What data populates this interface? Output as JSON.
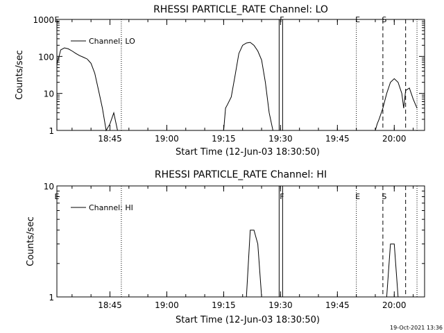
{
  "colors": {
    "background": "#ffffff",
    "foreground": "#000000"
  },
  "timestamp": "19-Oct-2021 13:36",
  "chart_data": [
    {
      "type": "line",
      "title": "RHESSI PARTICLE_RATE Channel: LO",
      "xlabel": "Start Time (12-Jun-03 18:30:50)",
      "ylabel": "Counts/sec",
      "y_scale": "log",
      "xlim": [
        "18:31",
        "20:08"
      ],
      "ylim": [
        1,
        1000
      ],
      "x_ticks": [
        "18:45",
        "19:00",
        "19:15",
        "19:30",
        "19:45",
        "20:00"
      ],
      "y_ticks": [
        "1",
        "10",
        "100",
        "1000"
      ],
      "legend": "top-left",
      "grid": false,
      "series": [
        {
          "name": "Channel: LO",
          "x": [
            "18:31",
            "18:32",
            "18:33",
            "18:34",
            "18:35",
            "18:36",
            "18:37",
            "18:38",
            "18:39",
            "18:40",
            "18:41",
            "18:42",
            "18:43",
            "18:44",
            "18:45",
            "18:46",
            "18:47",
            "19:15",
            "19:15.5",
            "19:16",
            "19:17",
            "19:18",
            "19:19",
            "19:20",
            "19:21",
            "19:22",
            "19:23",
            "19:24",
            "19:25",
            "19:26",
            "19:27",
            "19:28",
            "19:29",
            "19:55",
            "19:55.5",
            "19:56",
            "19:57",
            "19:58",
            "19:59",
            "20:00",
            "20:01",
            "20:02",
            "20:02.5",
            "20:03",
            "20:04",
            "20:05",
            "20:06"
          ],
          "values": [
            60,
            150,
            170,
            160,
            140,
            120,
            105,
            95,
            85,
            65,
            35,
            12,
            4,
            1,
            1.5,
            3,
            1,
            1,
            4,
            5,
            8,
            30,
            120,
            200,
            230,
            240,
            200,
            140,
            80,
            20,
            3,
            1,
            1,
            1,
            1.5,
            2,
            4,
            10,
            20,
            25,
            20,
            10,
            4,
            12,
            14,
            7,
            4
          ]
        }
      ],
      "events": [
        {
          "label": "E",
          "x": "18:31",
          "style": "none"
        },
        {
          "label": "",
          "x": "18:48",
          "style": "dotted"
        },
        {
          "label": "F",
          "x": "19:30",
          "style": "double"
        },
        {
          "label": "E",
          "x": "19:50",
          "style": "dotted"
        },
        {
          "label": "S",
          "x": "19:57",
          "style": "dashed"
        },
        {
          "label": "",
          "x": "20:03",
          "style": "dashed"
        },
        {
          "label": "",
          "x": "20:06",
          "style": "dotted"
        }
      ]
    },
    {
      "type": "line",
      "title": "RHESSI PARTICLE_RATE Channel: HI",
      "xlabel": "Start Time (12-Jun-03 18:30:50)",
      "ylabel": "Counts/sec",
      "y_scale": "log",
      "xlim": [
        "18:31",
        "20:08"
      ],
      "ylim": [
        1,
        10
      ],
      "x_ticks": [
        "18:45",
        "19:00",
        "19:15",
        "19:30",
        "19:45",
        "20:00"
      ],
      "y_ticks": [
        "1",
        "10"
      ],
      "legend": "top-left",
      "grid": false,
      "series": [
        {
          "name": "Channel: HI",
          "x": [
            "19:21",
            "19:22",
            "19:23",
            "19:24",
            "19:25",
            "19:58",
            "19:59",
            "20:00",
            "20:01"
          ],
          "values": [
            1,
            4,
            4,
            3,
            1,
            1,
            3,
            3,
            1
          ]
        }
      ],
      "events": [
        {
          "label": "E",
          "x": "18:31",
          "style": "none"
        },
        {
          "label": "",
          "x": "18:48",
          "style": "dotted"
        },
        {
          "label": "F",
          "x": "19:30",
          "style": "double"
        },
        {
          "label": "E",
          "x": "19:50",
          "style": "dotted"
        },
        {
          "label": "S",
          "x": "19:57",
          "style": "dashed"
        },
        {
          "label": "",
          "x": "20:03",
          "style": "dashed"
        },
        {
          "label": "",
          "x": "20:06",
          "style": "dotted"
        }
      ]
    }
  ]
}
